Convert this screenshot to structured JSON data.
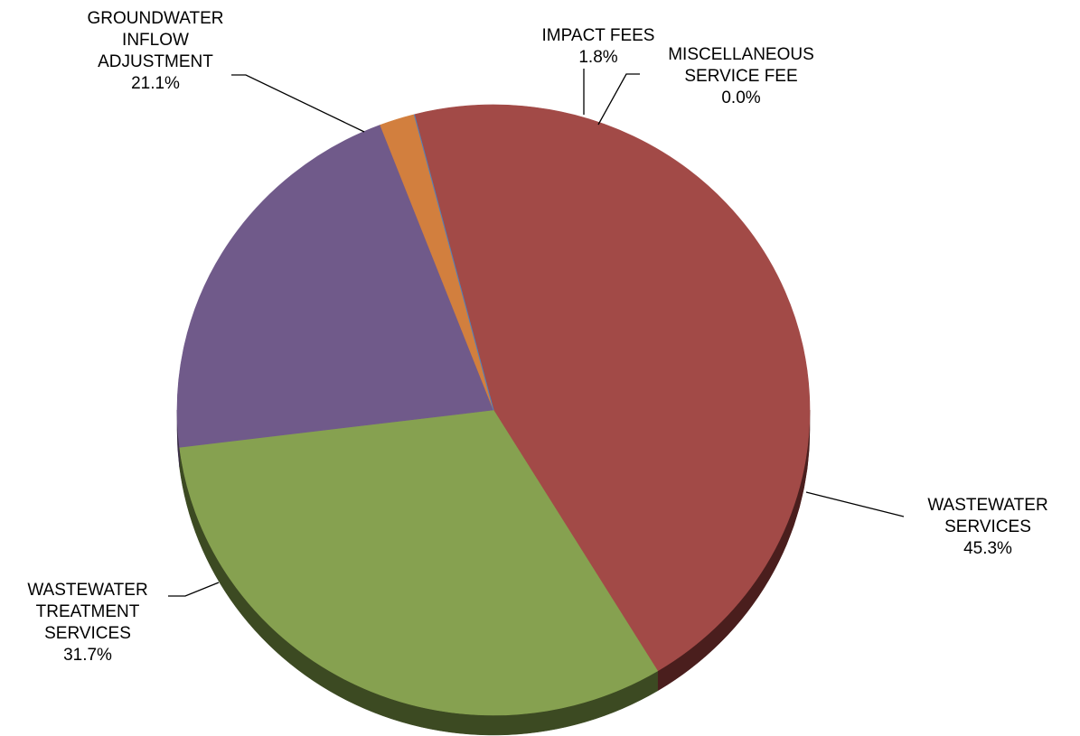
{
  "chart_data": {
    "type": "pie",
    "title": "",
    "style": "3d-tilted",
    "slices": [
      {
        "label": [
          "WASTEWATER",
          "SERVICES"
        ],
        "value": 45.3,
        "value_label": "45.3%",
        "color": "#A24A47",
        "side_color": "#4A1E1D"
      },
      {
        "label": [
          "WASTEWATER",
          "TREATMENT",
          "SERVICES"
        ],
        "value": 31.7,
        "value_label": "31.7%",
        "color": "#86A150",
        "side_color": "#3C4A22"
      },
      {
        "label": [
          "GROUNDWATER",
          "INFLOW",
          "ADJUSTMENT"
        ],
        "value": 21.1,
        "value_label": "21.1%",
        "color": "#705A8A",
        "side_color": "#3A2E48"
      },
      {
        "label": [
          "IMPACT FEES"
        ],
        "value": 1.8,
        "value_label": "1.8%",
        "color": "#D27F3E",
        "side_color": "#6B4020"
      },
      {
        "label": [
          "MISCELLANEOUS",
          "SERVICE FEE"
        ],
        "value": 0.0,
        "value_label": "0.0%",
        "color": "#4F81BD",
        "side_color": "#27415F"
      }
    ],
    "legend": "none"
  }
}
